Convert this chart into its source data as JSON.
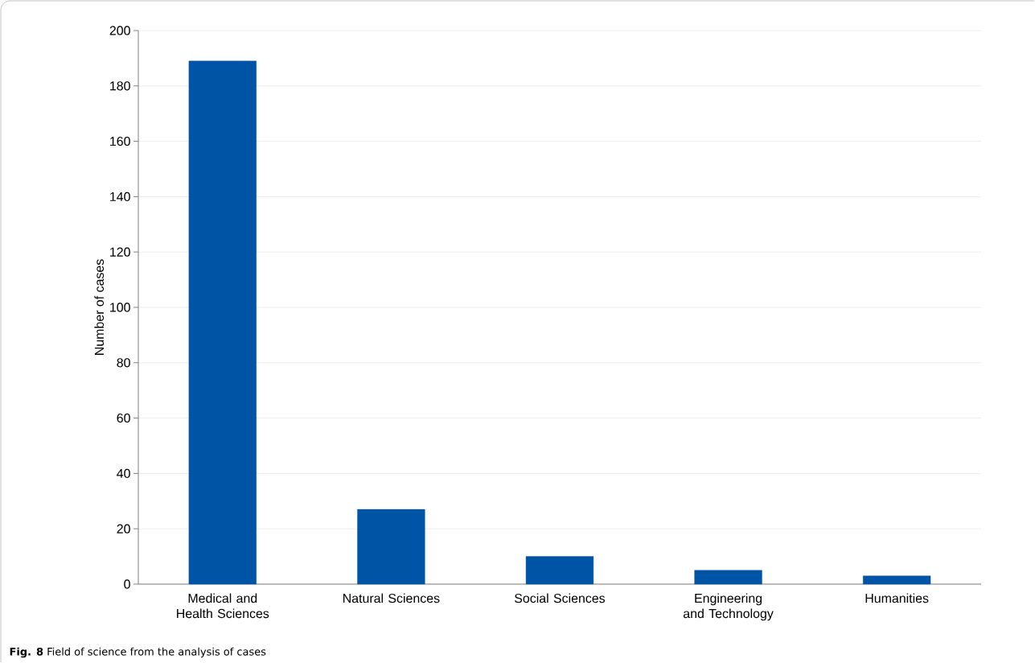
{
  "chart_data": {
    "type": "bar",
    "categories": [
      "Medical and Health Sciences",
      "Natural Sciences",
      "Social Sciences",
      "Engineering and Technology",
      "Humanities"
    ],
    "values": [
      189,
      27,
      10,
      5,
      3
    ],
    "color": "#0054a6",
    "ylabel": "Number of cases",
    "ylim": [
      0,
      200
    ],
    "yticks": [
      0,
      20,
      40,
      60,
      80,
      100,
      120,
      140,
      160,
      180,
      200
    ],
    "grid": "y",
    "annotations": [
      "**Fig. 8** Field of science from the analysis of cases"
    ]
  }
}
